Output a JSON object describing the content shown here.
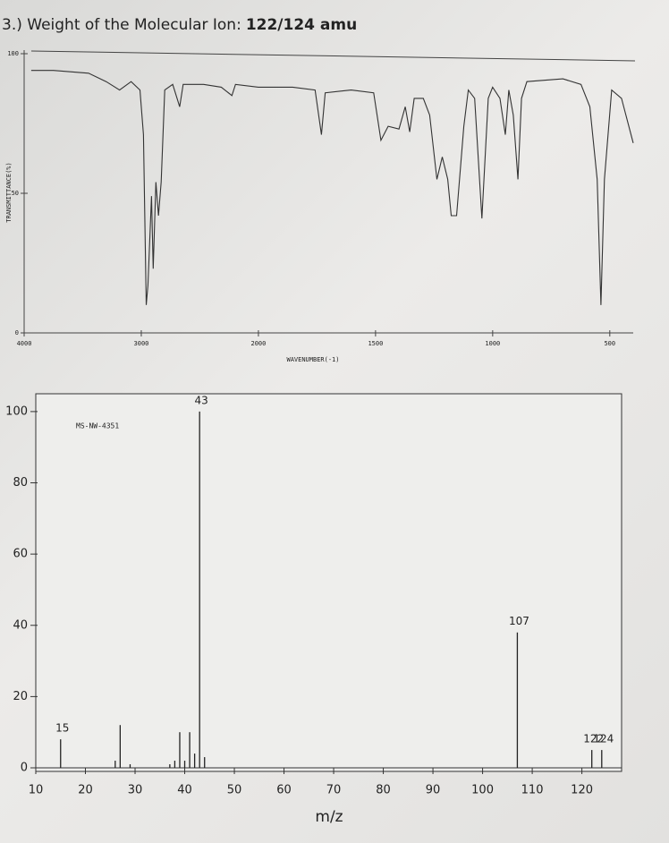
{
  "header": {
    "title": "3.) Weight of the Molecular Ion:",
    "highlight": "122/124 amu"
  },
  "chart_data": [
    {
      "type": "line",
      "x_label": "WAVENUMBER(-1)",
      "y_label": "TRANSMITTANCE(%)",
      "xlim": [
        4000,
        400
      ],
      "xticks": [
        4000,
        3000,
        2000,
        1500,
        1000,
        500
      ],
      "xscale": {
        "break": 2000,
        "ratio": 2
      },
      "ylim": [
        0,
        100
      ],
      "yticks": [
        0,
        50,
        100
      ],
      "color": "#333333",
      "x": [
        3940,
        3750,
        3450,
        3300,
        3185,
        3087,
        3011,
        2981,
        2958,
        2943,
        2913,
        2898,
        2875,
        2853,
        2830,
        2800,
        2732,
        2672,
        2642,
        2468,
        2317,
        2226,
        2196,
        2000,
        1854,
        1758,
        1731,
        1715,
        1604,
        1508,
        1477,
        1446,
        1400,
        1373,
        1354,
        1335,
        1296,
        1269,
        1238,
        1215,
        1192,
        1177,
        1154,
        1123,
        1104,
        1077,
        1046,
        1019,
        1000,
        969,
        946,
        931,
        912,
        892,
        877,
        854,
        700,
        623,
        585,
        554,
        538,
        523,
        492,
        450,
        400
      ],
      "values": [
        94,
        94,
        93,
        90,
        87,
        90,
        87,
        71,
        10,
        17,
        49,
        23,
        54,
        42,
        54,
        87,
        89,
        81,
        89,
        89,
        88,
        85,
        89,
        88,
        88,
        87,
        71,
        86,
        87,
        86,
        69,
        74,
        73,
        81,
        72,
        84,
        84,
        78,
        55,
        63,
        55,
        42,
        42,
        74,
        87,
        84,
        41,
        84,
        88,
        84,
        71,
        87,
        78,
        55,
        84,
        90,
        91,
        89,
        81,
        55,
        10,
        55,
        87,
        84,
        68
      ]
    },
    {
      "type": "bar",
      "x_label": "m/z",
      "annotation": "MS-NW-4351",
      "xlim": [
        10,
        128
      ],
      "xticks": [
        10,
        20,
        30,
        40,
        50,
        60,
        70,
        80,
        90,
        100,
        110,
        120
      ],
      "ylim": [
        0,
        105
      ],
      "yticks": [
        0,
        20,
        40,
        60,
        80,
        100
      ],
      "color": "#222222",
      "x": [
        15,
        26,
        27,
        29,
        37,
        38,
        39,
        40,
        41,
        42,
        43,
        44,
        107,
        122,
        124
      ],
      "values": [
        8,
        2,
        12,
        1,
        1,
        2,
        10,
        2,
        10,
        4,
        100,
        3,
        38,
        5,
        5
      ],
      "peak_labels": [
        {
          "text": "15",
          "x": 15
        },
        {
          "text": "43",
          "x": 43
        },
        {
          "text": "107",
          "x": 107
        },
        {
          "text": "122",
          "x": 122
        },
        {
          "text": "124",
          "x": 124
        }
      ]
    }
  ]
}
